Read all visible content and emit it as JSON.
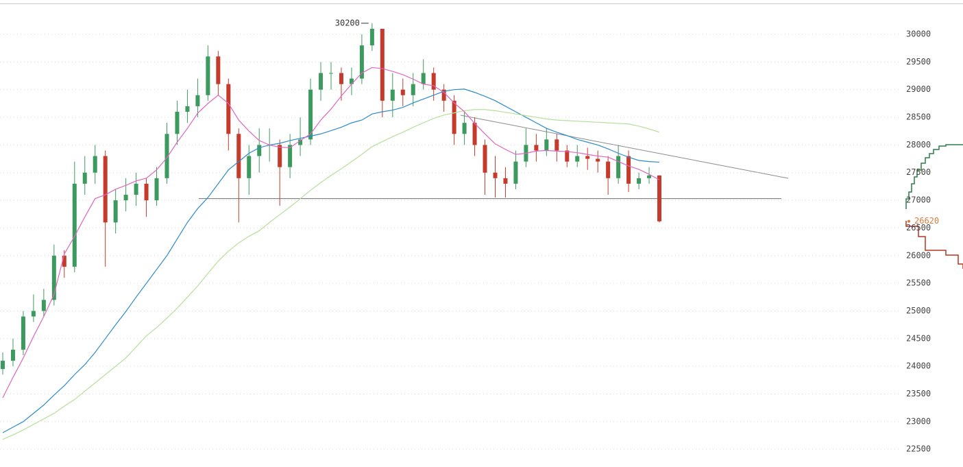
{
  "chart_data": {
    "type": "candlestick",
    "ylim": [
      22180,
      30620
    ],
    "yticks": [
      22500,
      23000,
      23500,
      24000,
      24500,
      25000,
      25500,
      26000,
      26500,
      27000,
      27500,
      28000,
      28500,
      29000,
      29500,
      30000
    ],
    "grid": true,
    "up_color": "#3d9a5f",
    "down_color": "#c53a2a",
    "open": [
      23950,
      24100,
      24300,
      24900,
      25000,
      25200,
      26000,
      25800,
      27300,
      27500,
      27800,
      26600,
      27000,
      27100,
      27300,
      27000,
      27400,
      28200,
      28600,
      28700,
      28900,
      29600,
      29100,
      28200,
      27400,
      27800,
      28000,
      28000,
      27600,
      28000,
      28100,
      29000,
      29300,
      29300,
      29100,
      29200,
      29800,
      30100,
      28800,
      29000,
      28900,
      29100,
      29300,
      29000,
      28800,
      28200,
      28400,
      28000,
      27500,
      27400,
      27300,
      27700,
      28000,
      27900,
      28100,
      27900,
      27700,
      27800,
      27750,
      27700,
      27400,
      27800,
      27300,
      27400,
      27450
    ],
    "high": [
      24250,
      24500,
      25000,
      25300,
      25400,
      26200,
      26100,
      27700,
      27800,
      28000,
      27900,
      27200,
      27400,
      27500,
      27400,
      27600,
      28400,
      28800,
      29000,
      29200,
      29800,
      29700,
      29200,
      28300,
      28000,
      28300,
      28300,
      28100,
      28200,
      28500,
      29200,
      29500,
      29500,
      29400,
      29400,
      30000,
      30200,
      30100,
      29300,
      29200,
      29300,
      29550,
      29400,
      29100,
      28900,
      28600,
      28500,
      28100,
      27800,
      27600,
      27900,
      28300,
      28200,
      28300,
      28200,
      28000,
      28000,
      27950,
      27900,
      27800,
      28000,
      27900,
      27500,
      27600,
      27450
    ],
    "low": [
      23850,
      24000,
      24200,
      24800,
      24900,
      25100,
      25600,
      25700,
      27100,
      27300,
      25800,
      26400,
      26800,
      26900,
      26700,
      26900,
      27300,
      28000,
      28400,
      28500,
      28800,
      28900,
      27900,
      26600,
      27100,
      27500,
      27700,
      26900,
      27400,
      27800,
      28000,
      28800,
      29000,
      28800,
      28900,
      29100,
      29700,
      28500,
      28500,
      28700,
      28700,
      29000,
      28800,
      28600,
      28000,
      28000,
      27800,
      27100,
      27050,
      27050,
      27200,
      27600,
      27700,
      27800,
      27700,
      27600,
      27600,
      27550,
      27500,
      27100,
      27300,
      27150,
      27200,
      27300,
      26600
    ],
    "close": [
      24100,
      24300,
      24900,
      25000,
      25200,
      26000,
      25800,
      27300,
      27500,
      27800,
      26600,
      27000,
      27100,
      27300,
      27000,
      27400,
      28200,
      28600,
      28700,
      28900,
      29600,
      29100,
      28200,
      27400,
      27800,
      28000,
      28000,
      27600,
      28000,
      28100,
      29000,
      29300,
      29300,
      29100,
      29200,
      29800,
      30100,
      28800,
      29000,
      28900,
      29100,
      29300,
      29000,
      28800,
      28200,
      28400,
      28000,
      27500,
      27400,
      27300,
      27700,
      28000,
      27900,
      28100,
      27900,
      27700,
      27800,
      27750,
      27700,
      27400,
      27800,
      27300,
      27400,
      27450,
      26620
    ],
    "lines": [
      {
        "color": "#2b8bc9",
        "values": [
          22800,
          22900,
          23000,
          23150,
          23300,
          23480,
          23650,
          23850,
          24030,
          24250,
          24500,
          24750,
          24990,
          25250,
          25500,
          25750,
          26000,
          26300,
          26600,
          26850,
          27050,
          27300,
          27550,
          27700,
          27850,
          27950,
          28000,
          28030,
          28080,
          28120,
          28160,
          28200,
          28260,
          28320,
          28400,
          28450,
          28560,
          28600,
          28630,
          28680,
          28760,
          28830,
          28900,
          28970,
          29000,
          29010,
          28950,
          28880,
          28800,
          28700,
          28600,
          28500,
          28400,
          28300,
          28230,
          28170,
          28100,
          28050,
          28000,
          27930,
          27850,
          27780,
          27720,
          27700,
          27690
        ]
      },
      {
        "color": "#b5e09a",
        "values": [
          22680,
          22760,
          22850,
          22950,
          23050,
          23150,
          23280,
          23400,
          23550,
          23700,
          23850,
          24000,
          24150,
          24350,
          24550,
          24700,
          24870,
          25050,
          25250,
          25450,
          25680,
          25900,
          26080,
          26230,
          26350,
          26450,
          26600,
          26740,
          26880,
          27030,
          27180,
          27320,
          27450,
          27570,
          27700,
          27830,
          27970,
          28060,
          28150,
          28230,
          28320,
          28400,
          28480,
          28540,
          28580,
          28620,
          28640,
          28640,
          28620,
          28590,
          28560,
          28530,
          28500,
          28470,
          28450,
          28440,
          28430,
          28420,
          28410,
          28400,
          28390,
          28380,
          28340,
          28290,
          28230
        ]
      },
      {
        "color": "#e066c0",
        "values": [
          23430,
          23800,
          24150,
          24540,
          24900,
          25300,
          26030,
          26350,
          26700,
          27030,
          27100,
          27200,
          27270,
          27350,
          27400,
          27550,
          27770,
          28050,
          28300,
          28575,
          28750,
          28900,
          28750,
          28450,
          28250,
          28080,
          28000,
          27960,
          27950,
          28080,
          28200,
          28450,
          28650,
          28885,
          29100,
          29300,
          29400,
          29380,
          29330,
          29270,
          29190,
          29100,
          29070,
          28950,
          28760,
          28600,
          28390,
          28200,
          28020,
          27920,
          27830,
          27850,
          27890,
          27900,
          27890,
          27880,
          27860,
          27830,
          27800,
          27780,
          27700,
          27620,
          27560,
          27470,
          27370
        ]
      }
    ],
    "support_line": 27030,
    "max_label": 30200,
    "last_price_label": 26620
  }
}
